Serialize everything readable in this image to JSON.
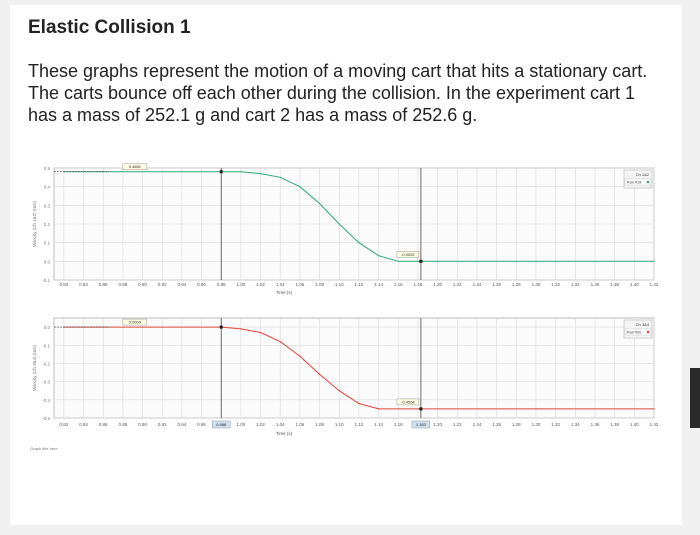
{
  "page": {
    "title": "Elastic Collision 1",
    "description": "These graphs represent the motion of a moving cart that hits a stationary cart. The carts bounce off each other during the collision. In the experiment cart 1 has a mass of 252.1 g and cart 2 has a mass of 252.6 g."
  },
  "colors": {
    "cart1_line": "#2eaa74",
    "cart2_line": "#e0443a",
    "grid": "#d9d9d9",
    "marker": "#1a1a1a"
  },
  "chart_data": [
    {
      "type": "line",
      "series_color": "#2eaa74",
      "x": [
        0.82,
        1.0,
        1.02,
        1.04,
        1.06,
        1.08,
        1.1,
        1.12,
        1.14,
        1.16,
        1.18,
        1.2,
        1.3,
        1.42
      ],
      "y": [
        0.48,
        0.48,
        0.47,
        0.45,
        0.4,
        0.31,
        0.2,
        0.1,
        0.03,
        0.0,
        0.0,
        0.0,
        0.0,
        0.0
      ],
      "xlim": [
        0.81,
        1.42
      ],
      "ylim": [
        -0.1,
        0.5
      ],
      "yticks": [
        "0.5",
        "0.4",
        "0.3",
        "0.2",
        "0.1",
        "0.0",
        "-0.1"
      ],
      "xticks": [
        "0.82",
        "0.84",
        "0.86",
        "0.88",
        "0.90",
        "0.92",
        "0.94",
        "0.96",
        "0.98",
        "1.00",
        "1.02",
        "1.04",
        "1.06",
        "1.08",
        "1.10",
        "1.12",
        "1.14",
        "1.16",
        "1.18",
        "1.20",
        "1.22",
        "1.24",
        "1.26",
        "1.28",
        "1.30",
        "1.32",
        "1.34",
        "1.36",
        "1.38",
        "1.40",
        "1.42"
      ],
      "xlabel": "Time (s)",
      "ylabel": "Velocity (Ch 1&2) (m/s)",
      "readout_top": "0.4681",
      "readout_bottom": "-0.0052",
      "legend_run": "Run #19",
      "legend_title": "Ch 1&2",
      "grid": true
    },
    {
      "type": "line",
      "series_color": "#e0443a",
      "x": [
        0.82,
        0.98,
        1.0,
        1.02,
        1.04,
        1.06,
        1.08,
        1.1,
        1.12,
        1.14,
        1.16,
        1.18,
        1.3,
        1.42
      ],
      "y": [
        0.0,
        0.0,
        -0.01,
        -0.03,
        -0.08,
        -0.16,
        -0.26,
        -0.35,
        -0.42,
        -0.45,
        -0.45,
        -0.45,
        -0.45,
        -0.45
      ],
      "xlim": [
        0.81,
        1.42
      ],
      "ylim": [
        -0.5,
        0.05
      ],
      "yticks": [
        "0.0",
        "-0.1",
        "-0.2",
        "-0.3",
        "-0.4",
        "-0.5"
      ],
      "xticks": [
        "0.82",
        "0.84",
        "0.86",
        "0.88",
        "0.90",
        "0.92",
        "0.94",
        "0.96",
        "0.98",
        "1.00",
        "1.02",
        "1.04",
        "1.06",
        "1.08",
        "1.10",
        "1.12",
        "1.14",
        "1.16",
        "1.18",
        "1.20",
        "1.22",
        "1.24",
        "1.26",
        "1.28",
        "1.30",
        "1.32",
        "1.34",
        "1.36",
        "1.38",
        "1.40",
        "1.42"
      ],
      "xlabel": "Time (s)",
      "ylabel": "Velocity (Ch 3&4) (m/s)",
      "readout_top": "0.0000",
      "readout_bottom": "-0.4504",
      "legend_run": "Run #20",
      "legend_title": "Ch 3&4",
      "marker_x_label_left": "0.988",
      "marker_x_label_right": "1.183",
      "footer_label": "Graph title here",
      "grid": true
    }
  ]
}
